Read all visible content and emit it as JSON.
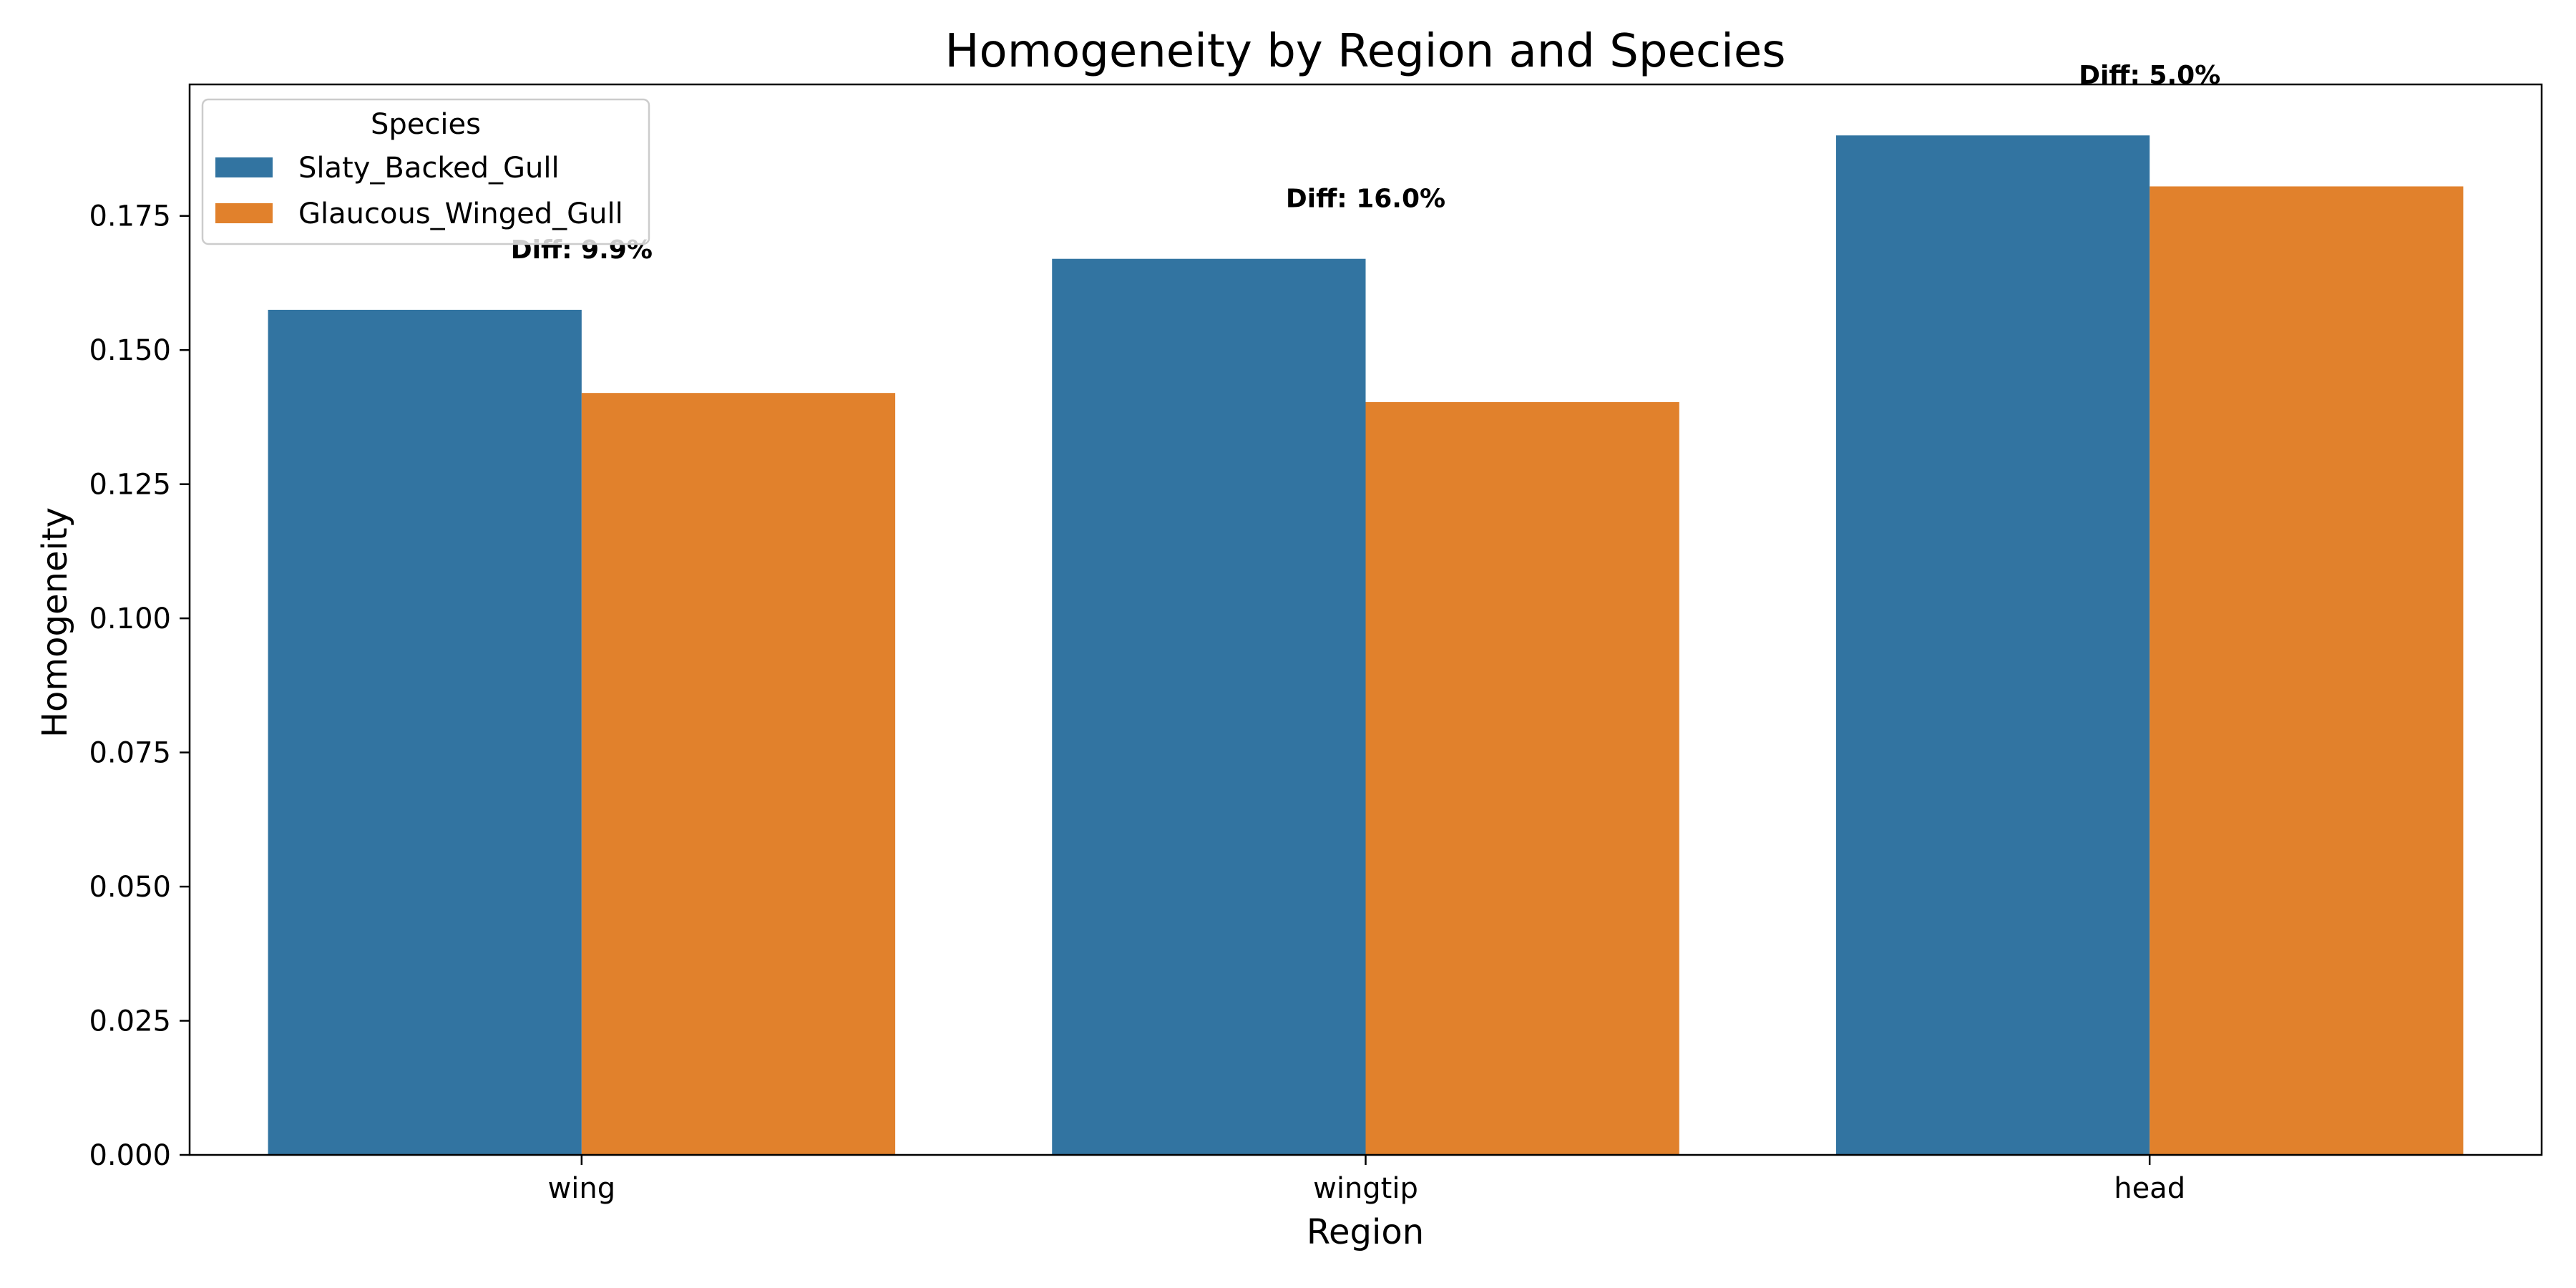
{
  "chart_data": {
    "type": "bar",
    "title": "Homogeneity by Region and Species",
    "xlabel": "Region",
    "ylabel": "Homogeneity",
    "categories": [
      "wing",
      "wingtip",
      "head"
    ],
    "series": [
      {
        "name": "Slaty_Backed_Gull",
        "color": "#3274a1",
        "values": [
          0.1575,
          0.167,
          0.19
        ]
      },
      {
        "name": "Glaucous_Winged_Gull",
        "color": "#e1812c",
        "values": [
          0.142,
          0.1403,
          0.1805
        ]
      }
    ],
    "ylim": [
      0,
      0.1995
    ],
    "yticks": [
      "0.000",
      "0.025",
      "0.050",
      "0.075",
      "0.100",
      "0.125",
      "0.150",
      "0.175"
    ],
    "legend": {
      "title": "Species",
      "position": "top-left"
    },
    "annotations": [
      "Diff: 9.9%",
      "Diff: 16.0%",
      "Diff: 5.0%"
    ],
    "grid": false
  }
}
